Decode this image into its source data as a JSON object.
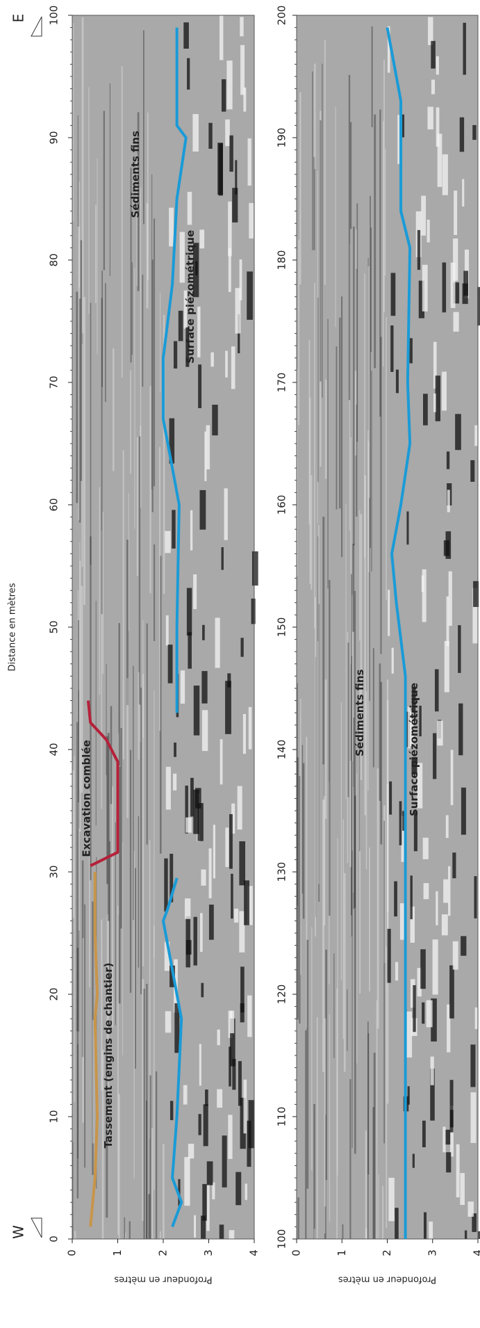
{
  "chart_data": [
    {
      "type": "line",
      "x_label": "Distance en mètres",
      "y_label": "Profondeur en mètres",
      "direction_labels": [
        "W",
        "E"
      ],
      "xlim": [
        0,
        100
      ],
      "xticks": [
        0,
        10,
        20,
        30,
        40,
        50,
        60,
        70,
        80,
        90,
        100
      ],
      "ylim": [
        0,
        4
      ],
      "yticks": [
        0,
        1,
        2,
        3,
        4
      ],
      "series": [
        {
          "color": "#1a9bd7",
          "x": [
            1,
            3,
            5,
            10,
            18,
            22,
            26,
            27,
            29.5,
            null,
            43,
            50,
            60,
            67,
            72,
            78,
            85,
            90,
            91,
            99
          ],
          "values": [
            2.2,
            2.4,
            2.2,
            2.3,
            2.4,
            2.2,
            2.0,
            2.1,
            2.3,
            null,
            2.3,
            2.3,
            2.35,
            2.0,
            2.0,
            2.2,
            2.3,
            2.5,
            2.3,
            2.3
          ]
        },
        {
          "color": "#b5213a",
          "x": [
            30.5,
            31.6,
            39,
            40.8,
            42.2,
            44
          ],
          "values": [
            0.4,
            1.0,
            1.0,
            0.75,
            0.4,
            0.35
          ]
        },
        {
          "color": "#c8954a",
          "x": [
            1,
            5,
            10,
            18,
            20,
            25,
            30
          ],
          "values": [
            0.4,
            0.5,
            0.55,
            0.5,
            0.55,
            0.5,
            0.5
          ]
        }
      ],
      "annotations": [
        {
          "text": "Sédiments fins",
          "color": "#b5213a"
        },
        {
          "text": "Surface piézométrique",
          "color": "#1a9bd7"
        },
        {
          "text": "Excavation comblée",
          "color": "#b5213a"
        },
        {
          "text": "Tassement (engins de chantier)",
          "color": "#b5213a"
        }
      ]
    },
    {
      "type": "line",
      "y_label": "Profondeur en mètres",
      "xlim": [
        100,
        200
      ],
      "xticks": [
        100,
        110,
        120,
        130,
        140,
        150,
        160,
        170,
        180,
        190,
        200
      ],
      "ylim": [
        0,
        4
      ],
      "yticks": [
        0,
        1,
        2,
        3,
        4
      ],
      "series": [
        {
          "color": "#1a9bd7",
          "x": [
            100,
            146,
            152,
            156,
            160,
            165,
            170,
            181,
            184,
            193,
            199
          ],
          "values": [
            2.4,
            2.4,
            2.2,
            2.1,
            2.3,
            2.5,
            2.45,
            2.5,
            2.3,
            2.3,
            2.0
          ]
        }
      ],
      "annotations": [
        {
          "text": "Sédiments fins",
          "color": "#b5213a"
        },
        {
          "text": "Surface piézométrique",
          "color": "#1a9bd7"
        }
      ]
    }
  ]
}
